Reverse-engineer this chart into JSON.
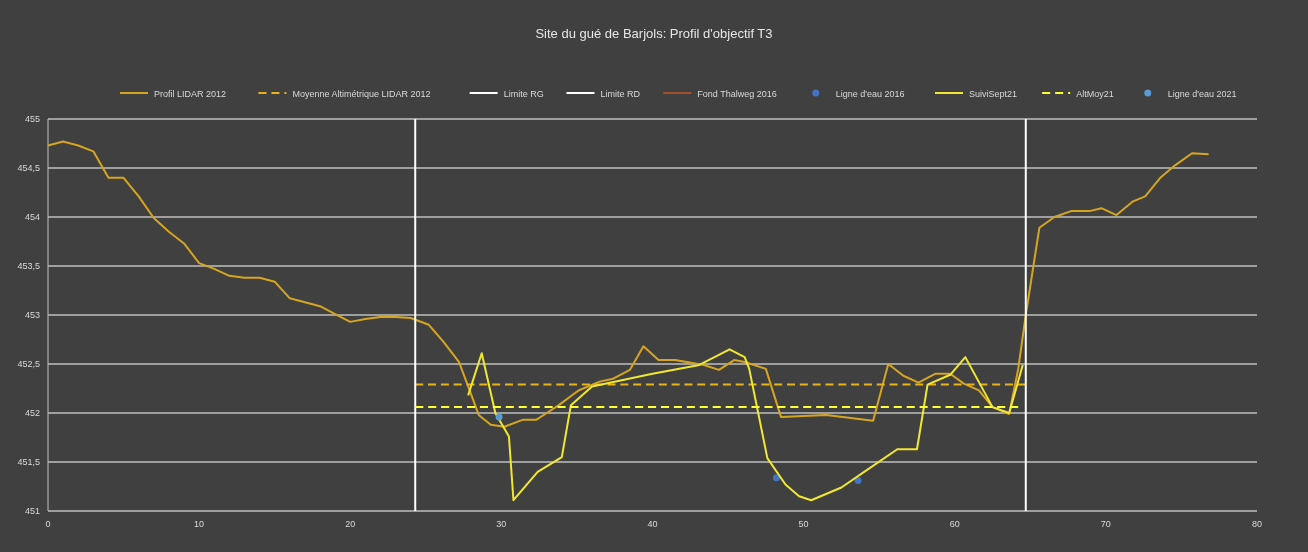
{
  "chart_data": {
    "type": "line",
    "title": "Site du gué de Barjols: Profil d'objectif T3",
    "xlim": [
      0,
      80
    ],
    "xticks": [
      0,
      10,
      20,
      30,
      40,
      50,
      60,
      70,
      80
    ],
    "ylim": [
      451,
      455
    ],
    "yticks": [
      451,
      {
        "value": 451.5,
        "label": "451,5"
      },
      452,
      {
        "value": 452.5,
        "label": "452,5"
      },
      453,
      {
        "value": 453.5,
        "label": "453,5"
      },
      454,
      {
        "value": 454.5,
        "label": "454,5"
      },
      455
    ],
    "grid": "y",
    "legend": "top",
    "series": [
      {
        "name": "Profil LIDAR 2012",
        "color": "#d6a520",
        "line_style": "solid",
        "x": [
          0,
          1,
          2,
          3,
          4,
          5,
          6,
          7,
          8,
          9,
          10,
          11,
          12,
          13,
          14,
          15,
          16,
          17,
          18,
          19,
          20,
          21,
          22,
          23,
          24,
          25.2,
          26.2,
          27.2,
          27.9,
          28.5,
          29.3,
          30.2,
          31.4,
          32.3,
          33,
          33.8,
          35.1,
          36.5,
          37.4,
          38.5,
          39.4,
          40.4,
          41.5,
          43.4,
          44.4,
          45.4,
          46.1,
          47.5,
          48.5,
          51.5,
          54.6,
          55.6,
          56.6,
          57.6,
          58.7,
          59.7,
          60.6,
          61.6,
          62.5,
          63.6,
          64.2,
          64.7,
          65.6,
          66.6,
          67.7,
          68.9,
          69.7,
          70.7,
          71.8,
          72.6,
          73.6,
          74.6,
          75.7,
          76.8
        ],
        "values": [
          454.73,
          454.77,
          454.73,
          454.67,
          454.4,
          454.4,
          454.21,
          453.99,
          453.85,
          453.73,
          453.53,
          453.47,
          453.4,
          453.38,
          453.38,
          453.34,
          453.17,
          453.13,
          453.09,
          453.01,
          452.93,
          452.96,
          452.98,
          452.98,
          452.97,
          452.9,
          452.72,
          452.52,
          452.23,
          451.98,
          451.88,
          451.86,
          451.93,
          451.93,
          452,
          452.08,
          452.23,
          452.32,
          452.35,
          452.44,
          452.68,
          452.54,
          452.54,
          452.49,
          452.44,
          452.54,
          452.52,
          452.45,
          451.96,
          451.98,
          451.92,
          452.5,
          452.38,
          452.31,
          452.4,
          452.4,
          452.3,
          452.23,
          452.06,
          451.99,
          452.45,
          453,
          453.89,
          454,
          454.06,
          454.06,
          454.09,
          454.02,
          454.16,
          454.21,
          454.4,
          454.53,
          454.65,
          454.64
        ]
      },
      {
        "name": "Moyenne Altimétrique LIDAR 2012",
        "color": "#e8b31a",
        "line_style": "dashed",
        "x": [
          24.3,
          64.7
        ],
        "values": [
          452.29,
          452.29
        ]
      },
      {
        "name": "Limite RG",
        "color": "#ffffff",
        "line_style": "solid",
        "x": [
          24.3,
          24.3
        ],
        "values": [
          451,
          455
        ]
      },
      {
        "name": "Limite RD",
        "color": "#ffffff",
        "line_style": "solid",
        "x": [
          64.7,
          64.7
        ],
        "values": [
          451,
          455
        ]
      },
      {
        "name": "Fond Thalweg 2016",
        "color": "#a0522d",
        "line_style": "solid"
      },
      {
        "name": "Ligne d'eau 2016",
        "type": "scatter",
        "marker": "circle",
        "color": "#4472c4",
        "x": [
          48.2,
          53.6
        ],
        "values": [
          451.34,
          451.31
        ]
      },
      {
        "name": "SuiviSept21",
        "color": "#f0e830",
        "line_style": "solid",
        "x": [
          27.8,
          28.7,
          29.6,
          30.5,
          30.8,
          32.4,
          34,
          34.6,
          36,
          40,
          43.1,
          45.1,
          46.1,
          46.4,
          47.6,
          48.8,
          49.7,
          50.5,
          52.5,
          54.2,
          56.2,
          57.5,
          58.2,
          59.7,
          60.7,
          62.5,
          63.6,
          64.5
        ],
        "values": [
          452.18,
          452.61,
          452,
          451.76,
          451.11,
          451.4,
          451.55,
          452.08,
          452.27,
          452.4,
          452.49,
          452.65,
          452.57,
          452.45,
          451.54,
          451.27,
          451.15,
          451.11,
          451.24,
          451.42,
          451.63,
          451.63,
          452.29,
          452.39,
          452.57,
          452.06,
          452,
          452.49
        ]
      },
      {
        "name": "AltMoy21",
        "color": "#ffff33",
        "line_style": "dashed",
        "x": [
          24.3,
          64.2
        ],
        "values": [
          452.06,
          452.06
        ]
      },
      {
        "name": "Ligne d'eau 2021",
        "type": "scatter",
        "marker": "circle",
        "color": "#5b9bd5",
        "x": [
          29.85
        ],
        "values": [
          451.96
        ]
      }
    ]
  }
}
